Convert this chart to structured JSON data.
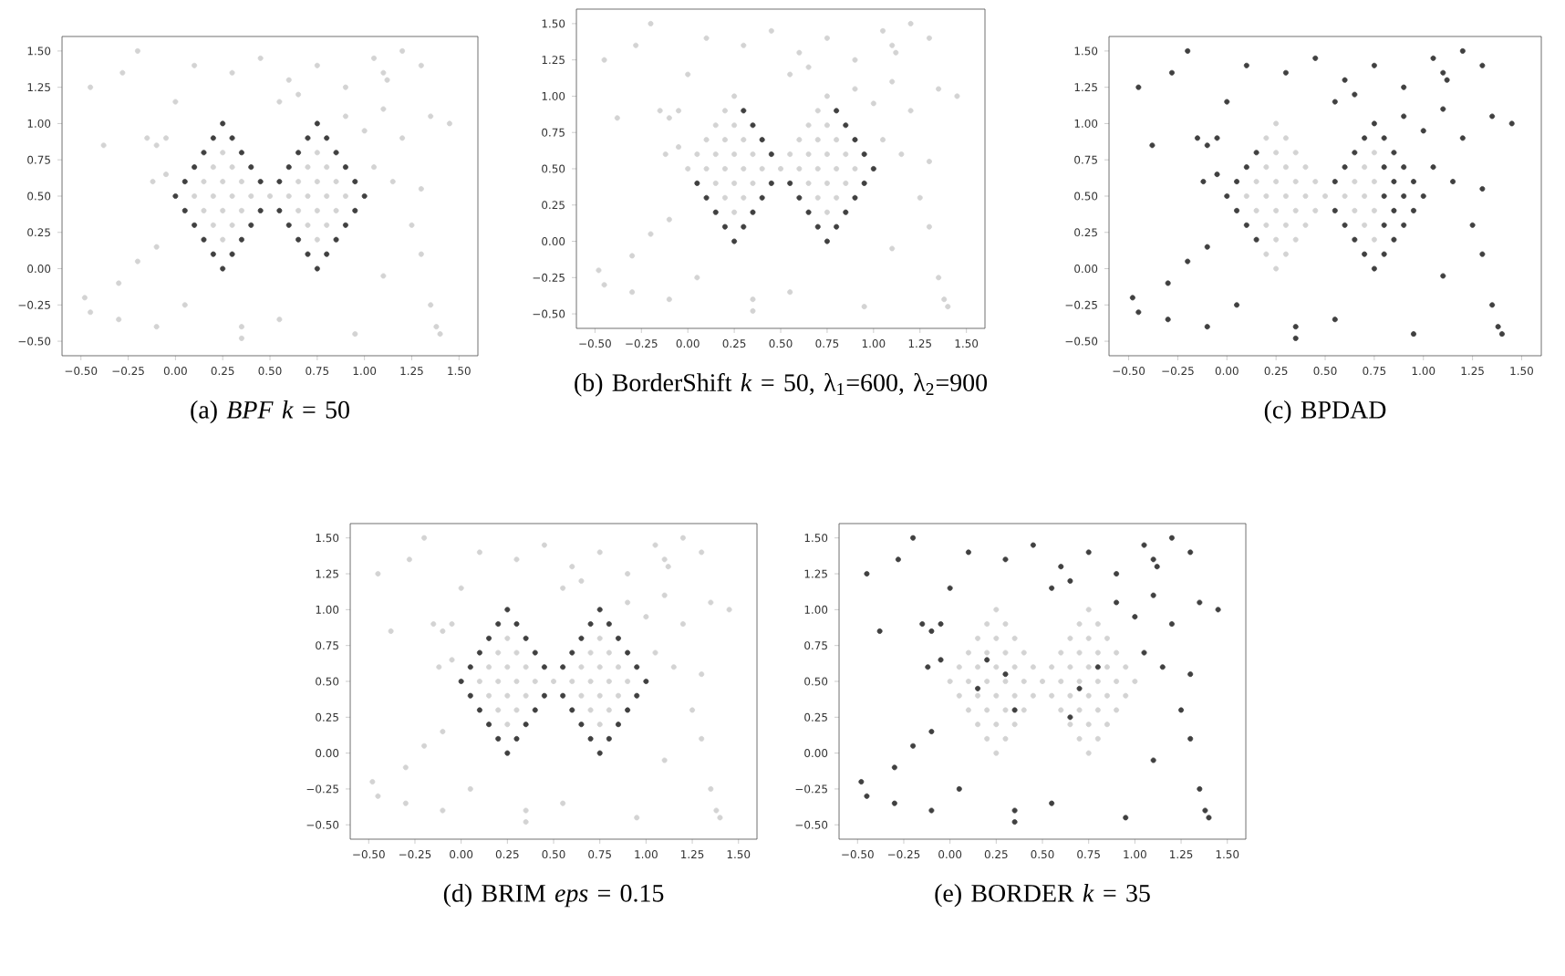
{
  "chart_data": [
    {
      "type": "scatter",
      "title": "(a) *BPF* *k* = 50",
      "xlim": [
        -0.6,
        1.6
      ],
      "ylim": [
        -0.6,
        1.6
      ],
      "xticks": [
        {
          "value": -0.5,
          "label": "−0.50"
        },
        {
          "value": -0.25,
          "label": "−0.25"
        },
        {
          "value": 0,
          "label": "0.00"
        },
        {
          "value": 0.25,
          "label": "0.25"
        },
        {
          "value": 0.5,
          "label": "0.50"
        },
        {
          "value": 0.75,
          "label": "0.75"
        },
        {
          "value": 1,
          "label": "1.00"
        },
        {
          "value": 1.25,
          "label": "1.25"
        },
        {
          "value": 1.5,
          "label": "1.50"
        }
      ],
      "yticks": [
        {
          "value": -0.5,
          "label": "−0.50"
        },
        {
          "value": -0.25,
          "label": "−0.25"
        },
        {
          "value": 0,
          "label": "0.00"
        },
        {
          "value": 0.25,
          "label": "0.25"
        },
        {
          "value": 0.5,
          "label": "0.50"
        },
        {
          "value": 0.75,
          "label": "0.75"
        },
        {
          "value": 1,
          "label": "1.00"
        },
        {
          "value": 1.25,
          "label": "1.25"
        },
        {
          "value": 1.5,
          "label": "1.50"
        }
      ],
      "series": [
        {
          "color": "#404040",
          "x": [
            0,
            0.05,
            0.1,
            0.15,
            0.2,
            0.25,
            0.3,
            0.35,
            0.4,
            0.45,
            0.45,
            0.4,
            0.35,
            0.3,
            0.25,
            0.2,
            0.15,
            0.1,
            0.05,
            0.55,
            0.6,
            0.65,
            0.7,
            0.75,
            0.8,
            0.85,
            0.9,
            0.95,
            1.0,
            0.95,
            0.9,
            0.85,
            0.8,
            0.75,
            0.7,
            0.65,
            0.6,
            0.55
          ],
          "values": [
            0.5,
            0.6,
            0.7,
            0.8,
            0.9,
            1.0,
            0.9,
            0.8,
            0.7,
            0.6,
            0.4,
            0.3,
            0.2,
            0.1,
            0.0,
            0.1,
            0.2,
            0.3,
            0.4,
            0.6,
            0.7,
            0.8,
            0.9,
            1.0,
            0.9,
            0.8,
            0.7,
            0.6,
            0.5,
            0.4,
            0.3,
            0.2,
            0.1,
            0.0,
            0.1,
            0.2,
            0.3,
            0.4
          ]
        },
        {
          "color": "#d3d3d3",
          "x": [
            0.1,
            0.2,
            0.3,
            0.4,
            0.5,
            0.15,
            0.25,
            0.35,
            0.15,
            0.25,
            0.35,
            0.2,
            0.3,
            0.2,
            0.3,
            0.25,
            0.25,
            0.6,
            0.7,
            0.8,
            0.9,
            0.65,
            0.75,
            0.85,
            0.65,
            0.75,
            0.85,
            0.7,
            0.8,
            0.7,
            0.8,
            0.75,
            0.75,
            -0.45,
            -0.38,
            -0.28,
            -0.2,
            -0.15,
            -0.1,
            -0.05,
            -0.12,
            -0.05,
            0.0,
            0.1,
            0.3,
            0.45,
            0.55,
            0.6,
            0.65,
            0.75,
            0.9,
            1.05,
            1.1,
            1.12,
            1.2,
            1.3,
            1.35,
            1.45,
            1.2,
            1.15,
            1.05,
            1.3,
            1.25,
            1.3,
            1.1,
            1.35,
            1.38,
            1.4,
            0.95,
            0.55,
            0.35,
            0.35,
            0.05,
            -0.1,
            -0.3,
            -0.45,
            -0.48,
            -0.3,
            -0.2,
            -0.1,
            1.1,
            0.9,
            1.0
          ],
          "values": [
            0.5,
            0.5,
            0.5,
            0.5,
            0.5,
            0.4,
            0.4,
            0.4,
            0.6,
            0.6,
            0.6,
            0.3,
            0.3,
            0.7,
            0.7,
            0.2,
            0.8,
            0.5,
            0.5,
            0.5,
            0.5,
            0.4,
            0.4,
            0.4,
            0.6,
            0.6,
            0.6,
            0.3,
            0.3,
            0.7,
            0.7,
            0.2,
            0.8,
            1.25,
            0.85,
            1.35,
            1.5,
            0.9,
            0.85,
            0.9,
            0.6,
            0.65,
            1.15,
            1.4,
            1.35,
            1.45,
            1.15,
            1.3,
            1.2,
            1.4,
            1.25,
            1.45,
            1.35,
            1.3,
            1.5,
            1.4,
            1.05,
            1.0,
            0.9,
            0.6,
            0.7,
            0.55,
            0.3,
            0.1,
            -0.05,
            -0.25,
            -0.4,
            -0.45,
            -0.45,
            -0.35,
            -0.4,
            -0.48,
            -0.25,
            -0.4,
            -0.35,
            -0.3,
            -0.2,
            -0.1,
            0.05,
            0.15,
            1.1,
            1.05,
            0.95
          ]
        }
      ]
    },
    {
      "type": "scatter",
      "title": "(b) BorderShift *k* = 50, λ$_{1}$=600, λ$_{2}$=900",
      "xlim": [
        -0.6,
        1.6
      ],
      "ylim": [
        -0.6,
        1.6
      ],
      "xticks": [
        {
          "value": -0.5,
          "label": "−0.50"
        },
        {
          "value": -0.25,
          "label": "−0.25"
        },
        {
          "value": 0,
          "label": "0.00"
        },
        {
          "value": 0.25,
          "label": "0.25"
        },
        {
          "value": 0.5,
          "label": "0.50"
        },
        {
          "value": 0.75,
          "label": "0.75"
        },
        {
          "value": 1,
          "label": "1.00"
        },
        {
          "value": 1.25,
          "label": "1.25"
        },
        {
          "value": 1.5,
          "label": "1.50"
        }
      ],
      "yticks": [
        {
          "value": -0.5,
          "label": "−0.50"
        },
        {
          "value": -0.25,
          "label": "−0.25"
        },
        {
          "value": 0,
          "label": "0.00"
        },
        {
          "value": 0.25,
          "label": "0.25"
        },
        {
          "value": 0.5,
          "label": "0.50"
        },
        {
          "value": 0.75,
          "label": "0.75"
        },
        {
          "value": 1,
          "label": "1.00"
        },
        {
          "value": 1.25,
          "label": "1.25"
        },
        {
          "value": 1.5,
          "label": "1.50"
        }
      ],
      "series": [
        {
          "color": "#404040",
          "x": [
            0.3,
            0.35,
            0.4,
            0.45,
            0.45,
            0.4,
            0.35,
            0.3,
            0.25,
            0.2,
            0.15,
            0.1,
            0.05,
            0.8,
            0.85,
            0.9,
            0.95,
            1.0,
            0.95,
            0.9,
            0.85,
            0.8,
            0.75,
            0.7,
            0.65,
            0.6,
            0.55
          ],
          "values": [
            0.9,
            0.8,
            0.7,
            0.6,
            0.4,
            0.3,
            0.2,
            0.1,
            0.0,
            0.1,
            0.2,
            0.3,
            0.4,
            0.9,
            0.8,
            0.7,
            0.6,
            0.5,
            0.4,
            0.3,
            0.2,
            0.1,
            0.0,
            0.1,
            0.2,
            0.3,
            0.4
          ]
        },
        {
          "color": "#d3d3d3",
          "x": [
            0,
            0.05,
            0.1,
            0.15,
            0.2,
            0.25,
            0.55,
            0.6,
            0.65,
            0.7,
            0.75,
            0.1,
            0.2,
            0.3,
            0.4,
            0.5,
            0.15,
            0.25,
            0.35,
            0.15,
            0.25,
            0.35,
            0.2,
            0.3,
            0.2,
            0.3,
            0.25,
            0.25,
            0.6,
            0.7,
            0.8,
            0.9,
            0.65,
            0.75,
            0.85,
            0.65,
            0.75,
            0.85,
            0.7,
            0.8,
            0.7,
            0.8,
            0.75,
            0.75,
            -0.45,
            -0.38,
            -0.28,
            -0.2,
            -0.15,
            -0.1,
            -0.05,
            -0.12,
            -0.05,
            0.0,
            0.1,
            0.3,
            0.45,
            0.55,
            0.6,
            0.65,
            0.75,
            0.9,
            1.05,
            1.1,
            1.12,
            1.2,
            1.3,
            1.35,
            1.45,
            1.2,
            1.15,
            1.05,
            1.3,
            1.25,
            1.3,
            1.1,
            1.35,
            1.38,
            1.4,
            0.95,
            0.55,
            0.35,
            0.35,
            0.05,
            -0.1,
            -0.3,
            -0.45,
            -0.48,
            -0.3,
            -0.2,
            -0.1,
            1.1,
            0.9,
            1.0
          ],
          "values": [
            0.5,
            0.6,
            0.7,
            0.8,
            0.9,
            1.0,
            0.6,
            0.7,
            0.8,
            0.9,
            1.0,
            0.5,
            0.5,
            0.5,
            0.5,
            0.5,
            0.4,
            0.4,
            0.4,
            0.6,
            0.6,
            0.6,
            0.3,
            0.3,
            0.7,
            0.7,
            0.2,
            0.8,
            0.5,
            0.5,
            0.5,
            0.5,
            0.4,
            0.4,
            0.4,
            0.6,
            0.6,
            0.6,
            0.3,
            0.3,
            0.7,
            0.7,
            0.2,
            0.8,
            1.25,
            0.85,
            1.35,
            1.5,
            0.9,
            0.85,
            0.9,
            0.6,
            0.65,
            1.15,
            1.4,
            1.35,
            1.45,
            1.15,
            1.3,
            1.2,
            1.4,
            1.25,
            1.45,
            1.35,
            1.3,
            1.5,
            1.4,
            1.05,
            1.0,
            0.9,
            0.6,
            0.7,
            0.55,
            0.3,
            0.1,
            -0.05,
            -0.25,
            -0.4,
            -0.45,
            -0.45,
            -0.35,
            -0.4,
            -0.48,
            -0.25,
            -0.4,
            -0.35,
            -0.3,
            -0.2,
            -0.1,
            0.05,
            0.15,
            1.1,
            1.05,
            0.95
          ]
        }
      ]
    },
    {
      "type": "scatter",
      "title": "(c) BPDAD",
      "xlim": [
        -0.6,
        1.6
      ],
      "ylim": [
        -0.6,
        1.6
      ],
      "xticks": [
        {
          "value": -0.5,
          "label": "−0.50"
        },
        {
          "value": -0.25,
          "label": "−0.25"
        },
        {
          "value": 0,
          "label": "0.00"
        },
        {
          "value": 0.25,
          "label": "0.25"
        },
        {
          "value": 0.5,
          "label": "0.50"
        },
        {
          "value": 0.75,
          "label": "0.75"
        },
        {
          "value": 1,
          "label": "1.00"
        },
        {
          "value": 1.25,
          "label": "1.25"
        },
        {
          "value": 1.5,
          "label": "1.50"
        }
      ],
      "yticks": [
        {
          "value": -0.5,
          "label": "−0.50"
        },
        {
          "value": -0.25,
          "label": "−0.25"
        },
        {
          "value": 0,
          "label": "0.00"
        },
        {
          "value": 0.25,
          "label": "0.25"
        },
        {
          "value": 0.5,
          "label": "0.50"
        },
        {
          "value": 0.75,
          "label": "0.75"
        },
        {
          "value": 1,
          "label": "1.00"
        },
        {
          "value": 1.25,
          "label": "1.25"
        },
        {
          "value": 1.5,
          "label": "1.50"
        }
      ],
      "series": [
        {
          "color": "#d3d3d3",
          "x": [
            0.2,
            0.25,
            0.3,
            0.35,
            0.4,
            0.45,
            0.45,
            0.4,
            0.35,
            0.3,
            0.25,
            0.2,
            0.1,
            0.2,
            0.3,
            0.4,
            0.5,
            0.15,
            0.25,
            0.35,
            0.15,
            0.25,
            0.35,
            0.2,
            0.3,
            0.2,
            0.3,
            0.25,
            0.25,
            0.6,
            0.7,
            0.65,
            0.75,
            0.65,
            0.75,
            0.7,
            0.7,
            0.75,
            0.75
          ],
          "values": [
            0.9,
            1.0,
            0.9,
            0.8,
            0.7,
            0.6,
            0.4,
            0.3,
            0.2,
            0.1,
            0.0,
            0.1,
            0.5,
            0.5,
            0.5,
            0.5,
            0.5,
            0.4,
            0.4,
            0.4,
            0.6,
            0.6,
            0.6,
            0.3,
            0.3,
            0.7,
            0.7,
            0.2,
            0.8,
            0.5,
            0.5,
            0.4,
            0.4,
            0.6,
            0.6,
            0.3,
            0.7,
            0.2,
            0.8
          ]
        },
        {
          "color": "#404040",
          "x": [
            0,
            0.05,
            0.1,
            0.15,
            0.05,
            0.1,
            0.15,
            0.55,
            0.6,
            0.65,
            0.7,
            0.75,
            0.8,
            0.85,
            0.9,
            0.95,
            1.0,
            0.95,
            0.9,
            0.85,
            0.8,
            0.75,
            0.7,
            0.65,
            0.6,
            0.55,
            0.8,
            0.9,
            0.85,
            0.85,
            0.8,
            0.8,
            -0.45,
            -0.38,
            -0.28,
            -0.2,
            -0.15,
            -0.1,
            -0.05,
            -0.12,
            -0.05,
            0.0,
            0.1,
            0.3,
            0.45,
            0.55,
            0.6,
            0.65,
            0.75,
            0.9,
            1.05,
            1.1,
            1.12,
            1.2,
            1.3,
            1.35,
            1.45,
            1.2,
            1.15,
            1.05,
            1.3,
            1.25,
            1.3,
            1.1,
            1.35,
            1.38,
            1.4,
            0.95,
            0.55,
            0.35,
            0.35,
            0.05,
            -0.1,
            -0.3,
            -0.45,
            -0.48,
            -0.3,
            -0.2,
            -0.1,
            1.1,
            0.9,
            1.0
          ],
          "values": [
            0.5,
            0.6,
            0.7,
            0.8,
            0.4,
            0.3,
            0.2,
            0.6,
            0.7,
            0.8,
            0.9,
            1.0,
            0.9,
            0.8,
            0.7,
            0.6,
            0.5,
            0.4,
            0.3,
            0.2,
            0.1,
            0.0,
            0.1,
            0.2,
            0.3,
            0.4,
            0.5,
            0.5,
            0.4,
            0.6,
            0.3,
            0.7,
            1.25,
            0.85,
            1.35,
            1.5,
            0.9,
            0.85,
            0.9,
            0.6,
            0.65,
            1.15,
            1.4,
            1.35,
            1.45,
            1.15,
            1.3,
            1.2,
            1.4,
            1.25,
            1.45,
            1.35,
            1.3,
            1.5,
            1.4,
            1.05,
            1.0,
            0.9,
            0.6,
            0.7,
            0.55,
            0.3,
            0.1,
            -0.05,
            -0.25,
            -0.4,
            -0.45,
            -0.45,
            -0.35,
            -0.4,
            -0.48,
            -0.25,
            -0.4,
            -0.35,
            -0.3,
            -0.2,
            -0.1,
            0.05,
            0.15,
            1.1,
            1.05,
            0.95
          ]
        }
      ]
    },
    {
      "type": "scatter",
      "title": "(d) BRIM *eps* = 0.15",
      "xlim": [
        -0.6,
        1.6
      ],
      "ylim": [
        -0.6,
        1.6
      ],
      "xticks": [
        {
          "value": -0.5,
          "label": "−0.50"
        },
        {
          "value": -0.25,
          "label": "−0.25"
        },
        {
          "value": 0,
          "label": "0.00"
        },
        {
          "value": 0.25,
          "label": "0.25"
        },
        {
          "value": 0.5,
          "label": "0.50"
        },
        {
          "value": 0.75,
          "label": "0.75"
        },
        {
          "value": 1,
          "label": "1.00"
        },
        {
          "value": 1.25,
          "label": "1.25"
        },
        {
          "value": 1.5,
          "label": "1.50"
        }
      ],
      "yticks": [
        {
          "value": -0.5,
          "label": "−0.50"
        },
        {
          "value": -0.25,
          "label": "−0.25"
        },
        {
          "value": 0,
          "label": "0.00"
        },
        {
          "value": 0.25,
          "label": "0.25"
        },
        {
          "value": 0.5,
          "label": "0.50"
        },
        {
          "value": 0.75,
          "label": "0.75"
        },
        {
          "value": 1,
          "label": "1.00"
        },
        {
          "value": 1.25,
          "label": "1.25"
        },
        {
          "value": 1.5,
          "label": "1.50"
        }
      ],
      "series": [
        {
          "color": "#404040",
          "x": [
            0,
            0.05,
            0.1,
            0.15,
            0.2,
            0.25,
            0.3,
            0.35,
            0.4,
            0.45,
            0.45,
            0.4,
            0.35,
            0.3,
            0.25,
            0.2,
            0.15,
            0.1,
            0.05,
            0.55,
            0.6,
            0.65,
            0.7,
            0.75,
            0.8,
            0.85,
            0.9,
            0.95,
            1.0,
            0.95,
            0.9,
            0.85,
            0.8,
            0.75,
            0.7,
            0.65,
            0.6,
            0.55
          ],
          "values": [
            0.5,
            0.6,
            0.7,
            0.8,
            0.9,
            1.0,
            0.9,
            0.8,
            0.7,
            0.6,
            0.4,
            0.3,
            0.2,
            0.1,
            0.0,
            0.1,
            0.2,
            0.3,
            0.4,
            0.6,
            0.7,
            0.8,
            0.9,
            1.0,
            0.9,
            0.8,
            0.7,
            0.6,
            0.5,
            0.4,
            0.3,
            0.2,
            0.1,
            0.0,
            0.1,
            0.2,
            0.3,
            0.4
          ]
        },
        {
          "color": "#d3d3d3",
          "x": [
            0.1,
            0.2,
            0.3,
            0.4,
            0.5,
            0.15,
            0.25,
            0.35,
            0.15,
            0.25,
            0.35,
            0.2,
            0.3,
            0.2,
            0.3,
            0.25,
            0.25,
            0.6,
            0.7,
            0.8,
            0.9,
            0.65,
            0.75,
            0.85,
            0.65,
            0.75,
            0.85,
            0.7,
            0.8,
            0.7,
            0.8,
            0.75,
            0.75,
            -0.45,
            -0.38,
            -0.28,
            -0.2,
            -0.15,
            -0.1,
            -0.05,
            -0.12,
            -0.05,
            0.0,
            0.1,
            0.3,
            0.45,
            0.55,
            0.6,
            0.65,
            0.75,
            0.9,
            1.05,
            1.1,
            1.12,
            1.2,
            1.3,
            1.35,
            1.45,
            1.2,
            1.15,
            1.05,
            1.3,
            1.25,
            1.3,
            1.1,
            1.35,
            1.38,
            1.4,
            0.95,
            0.55,
            0.35,
            0.35,
            0.05,
            -0.1,
            -0.3,
            -0.45,
            -0.48,
            -0.3,
            -0.2,
            -0.1,
            1.1,
            0.9,
            1.0
          ],
          "values": [
            0.5,
            0.5,
            0.5,
            0.5,
            0.5,
            0.4,
            0.4,
            0.4,
            0.6,
            0.6,
            0.6,
            0.3,
            0.3,
            0.7,
            0.7,
            0.2,
            0.8,
            0.5,
            0.5,
            0.5,
            0.5,
            0.4,
            0.4,
            0.4,
            0.6,
            0.6,
            0.6,
            0.3,
            0.3,
            0.7,
            0.7,
            0.2,
            0.8,
            1.25,
            0.85,
            1.35,
            1.5,
            0.9,
            0.85,
            0.9,
            0.6,
            0.65,
            1.15,
            1.4,
            1.35,
            1.45,
            1.15,
            1.3,
            1.2,
            1.4,
            1.25,
            1.45,
            1.35,
            1.3,
            1.5,
            1.4,
            1.05,
            1.0,
            0.9,
            0.6,
            0.7,
            0.55,
            0.3,
            0.1,
            -0.05,
            -0.25,
            -0.4,
            -0.45,
            -0.45,
            -0.35,
            -0.4,
            -0.48,
            -0.25,
            -0.4,
            -0.35,
            -0.3,
            -0.2,
            -0.1,
            0.05,
            0.15,
            1.1,
            1.05,
            0.95
          ]
        }
      ]
    },
    {
      "type": "scatter",
      "title": "(e) BORDER *k* = 35",
      "xlim": [
        -0.6,
        1.6
      ],
      "ylim": [
        -0.6,
        1.6
      ],
      "xticks": [
        {
          "value": -0.5,
          "label": "−0.50"
        },
        {
          "value": -0.25,
          "label": "−0.25"
        },
        {
          "value": 0,
          "label": "0.00"
        },
        {
          "value": 0.25,
          "label": "0.25"
        },
        {
          "value": 0.5,
          "label": "0.50"
        },
        {
          "value": 0.75,
          "label": "0.75"
        },
        {
          "value": 1,
          "label": "1.00"
        },
        {
          "value": 1.25,
          "label": "1.25"
        },
        {
          "value": 1.5,
          "label": "1.50"
        }
      ],
      "yticks": [
        {
          "value": -0.5,
          "label": "−0.50"
        },
        {
          "value": -0.25,
          "label": "−0.25"
        },
        {
          "value": 0,
          "label": "0.00"
        },
        {
          "value": 0.25,
          "label": "0.25"
        },
        {
          "value": 0.5,
          "label": "0.50"
        },
        {
          "value": 0.75,
          "label": "0.75"
        },
        {
          "value": 1,
          "label": "1.00"
        },
        {
          "value": 1.25,
          "label": "1.25"
        },
        {
          "value": 1.5,
          "label": "1.50"
        }
      ],
      "series": [
        {
          "color": "#d3d3d3",
          "x": [
            0,
            0.05,
            0.1,
            0.15,
            0.2,
            0.25,
            0.3,
            0.35,
            0.4,
            0.45,
            0.45,
            0.4,
            0.35,
            0.3,
            0.25,
            0.2,
            0.15,
            0.1,
            0.05,
            0.55,
            0.6,
            0.65,
            0.7,
            0.75,
            0.8,
            0.85,
            0.9,
            0.95,
            1.0,
            0.95,
            0.9,
            0.85,
            0.8,
            0.75,
            0.7,
            0.65,
            0.6,
            0.55,
            0.1,
            0.2,
            0.3,
            0.4,
            0.5,
            0.15,
            0.25,
            0.35,
            0.15,
            0.25,
            0.35,
            0.2,
            0.3,
            0.2,
            0.3,
            0.25,
            0.25,
            0.6,
            0.7,
            0.8,
            0.9,
            0.65,
            0.75,
            0.85,
            0.65,
            0.75,
            0.85,
            0.7,
            0.8,
            0.7,
            0.8,
            0.75,
            0.75
          ],
          "values": [
            0.5,
            0.6,
            0.7,
            0.8,
            0.9,
            1.0,
            0.9,
            0.8,
            0.7,
            0.6,
            0.4,
            0.3,
            0.2,
            0.1,
            0.0,
            0.1,
            0.2,
            0.3,
            0.4,
            0.6,
            0.7,
            0.8,
            0.9,
            1.0,
            0.9,
            0.8,
            0.7,
            0.6,
            0.5,
            0.4,
            0.3,
            0.2,
            0.1,
            0.0,
            0.1,
            0.2,
            0.3,
            0.4,
            0.5,
            0.5,
            0.5,
            0.5,
            0.5,
            0.4,
            0.4,
            0.4,
            0.6,
            0.6,
            0.6,
            0.3,
            0.3,
            0.7,
            0.7,
            0.2,
            0.8,
            0.5,
            0.5,
            0.5,
            0.5,
            0.4,
            0.4,
            0.4,
            0.6,
            0.6,
            0.6,
            0.3,
            0.3,
            0.7,
            0.7,
            0.2,
            0.8
          ]
        },
        {
          "color": "#404040",
          "x": [
            0.15,
            0.3,
            0.2,
            0.35,
            0.7,
            0.8,
            0.65,
            -0.45,
            -0.38,
            -0.28,
            -0.2,
            -0.15,
            -0.1,
            -0.05,
            -0.12,
            -0.05,
            0.0,
            0.1,
            0.3,
            0.45,
            0.55,
            0.6,
            0.65,
            0.75,
            0.9,
            1.05,
            1.1,
            1.12,
            1.2,
            1.3,
            1.35,
            1.45,
            1.2,
            1.15,
            1.05,
            1.3,
            1.25,
            1.3,
            1.1,
            1.35,
            1.38,
            1.4,
            0.95,
            0.55,
            0.35,
            0.35,
            0.05,
            -0.1,
            -0.3,
            -0.45,
            -0.48,
            -0.3,
            -0.2,
            -0.1,
            1.1,
            0.9,
            1.0
          ],
          "values": [
            0.45,
            0.55,
            0.65,
            0.3,
            0.45,
            0.6,
            0.25,
            1.25,
            0.85,
            1.35,
            1.5,
            0.9,
            0.85,
            0.9,
            0.6,
            0.65,
            1.15,
            1.4,
            1.35,
            1.45,
            1.15,
            1.3,
            1.2,
            1.4,
            1.25,
            1.45,
            1.35,
            1.3,
            1.5,
            1.4,
            1.05,
            1.0,
            0.9,
            0.6,
            0.7,
            0.55,
            0.3,
            0.1,
            -0.05,
            -0.25,
            -0.4,
            -0.45,
            -0.45,
            -0.35,
            -0.4,
            -0.48,
            -0.25,
            -0.4,
            -0.35,
            -0.3,
            -0.2,
            -0.1,
            0.05,
            0.15,
            1.1,
            1.05,
            0.95
          ]
        }
      ]
    }
  ]
}
